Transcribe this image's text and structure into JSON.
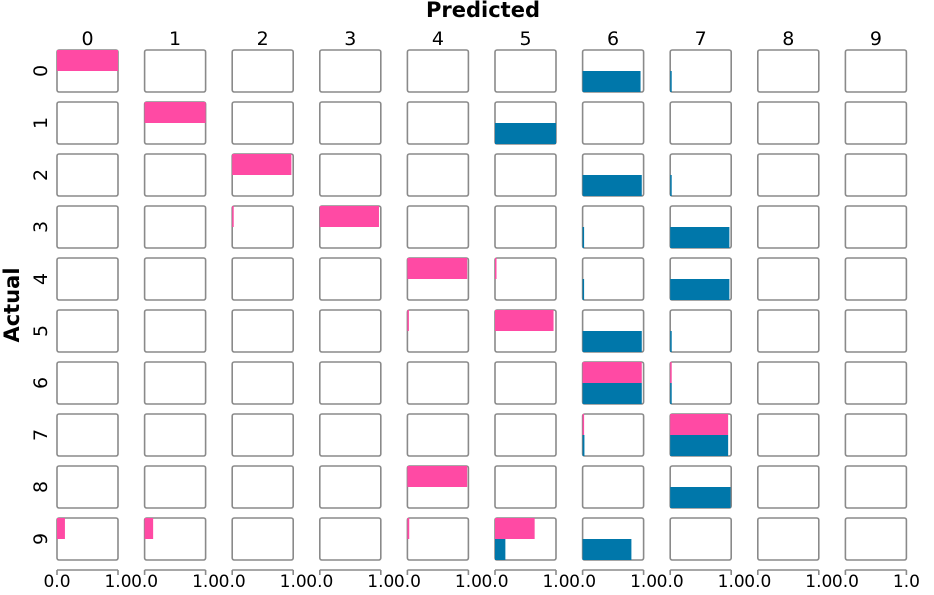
{
  "chart_data": {
    "type": "bar",
    "chart_kind": "confusion-matrix grid of horizontal bar panels",
    "xlabel": "Predicted",
    "ylabel": "Actual",
    "predicted_labels": [
      "0",
      "1",
      "2",
      "3",
      "4",
      "5",
      "6",
      "7",
      "8",
      "9"
    ],
    "actual_labels": [
      "0",
      "1",
      "2",
      "3",
      "4",
      "5",
      "6",
      "7",
      "8",
      "9"
    ],
    "x_tick_labels": [
      "0.0",
      "1.0"
    ],
    "xlim": [
      0,
      1
    ],
    "series": [
      {
        "key": "pink",
        "color": "#ff4aa4"
      },
      {
        "key": "blue",
        "color": "#0077aa"
      }
    ],
    "cells": [
      {
        "actual": 0,
        "predicted": 0,
        "pink": 1.0,
        "blue": 0.0
      },
      {
        "actual": 0,
        "predicted": 6,
        "pink": 0.0,
        "blue": 0.95
      },
      {
        "actual": 0,
        "predicted": 7,
        "pink": 0.0,
        "blue": 0.02
      },
      {
        "actual": 1,
        "predicted": 1,
        "pink": 1.0,
        "blue": 0.0
      },
      {
        "actual": 1,
        "predicted": 5,
        "pink": 0.0,
        "blue": 1.0
      },
      {
        "actual": 2,
        "predicted": 2,
        "pink": 0.97,
        "blue": 0.0
      },
      {
        "actual": 2,
        "predicted": 6,
        "pink": 0.0,
        "blue": 0.97
      },
      {
        "actual": 2,
        "predicted": 7,
        "pink": 0.0,
        "blue": 0.02
      },
      {
        "actual": 3,
        "predicted": 2,
        "pink": 0.02,
        "blue": 0.0
      },
      {
        "actual": 3,
        "predicted": 3,
        "pink": 0.97,
        "blue": 0.0
      },
      {
        "actual": 3,
        "predicted": 6,
        "pink": 0.0,
        "blue": 0.02
      },
      {
        "actual": 3,
        "predicted": 7,
        "pink": 0.0,
        "blue": 0.97
      },
      {
        "actual": 4,
        "predicted": 4,
        "pink": 0.98,
        "blue": 0.0
      },
      {
        "actual": 4,
        "predicted": 5,
        "pink": 0.02,
        "blue": 0.0
      },
      {
        "actual": 4,
        "predicted": 6,
        "pink": 0.0,
        "blue": 0.02
      },
      {
        "actual": 4,
        "predicted": 7,
        "pink": 0.0,
        "blue": 0.97
      },
      {
        "actual": 5,
        "predicted": 4,
        "pink": 0.02,
        "blue": 0.0
      },
      {
        "actual": 5,
        "predicted": 5,
        "pink": 0.96,
        "blue": 0.0
      },
      {
        "actual": 5,
        "predicted": 6,
        "pink": 0.0,
        "blue": 0.97
      },
      {
        "actual": 5,
        "predicted": 7,
        "pink": 0.0,
        "blue": 0.02
      },
      {
        "actual": 6,
        "predicted": 6,
        "pink": 0.97,
        "blue": 0.97
      },
      {
        "actual": 6,
        "predicted": 7,
        "pink": 0.02,
        "blue": 0.02
      },
      {
        "actual": 7,
        "predicted": 6,
        "pink": 0.02,
        "blue": 0.03
      },
      {
        "actual": 7,
        "predicted": 7,
        "pink": 0.95,
        "blue": 0.95
      },
      {
        "actual": 8,
        "predicted": 4,
        "pink": 0.98,
        "blue": 0.0
      },
      {
        "actual": 8,
        "predicted": 7,
        "pink": 0.0,
        "blue": 0.99
      },
      {
        "actual": 9,
        "predicted": 0,
        "pink": 0.13,
        "blue": 0.0
      },
      {
        "actual": 9,
        "predicted": 1,
        "pink": 0.14,
        "blue": 0.0
      },
      {
        "actual": 9,
        "predicted": 4,
        "pink": 0.03,
        "blue": 0.0
      },
      {
        "actual": 9,
        "predicted": 5,
        "pink": 0.65,
        "blue": 0.17
      },
      {
        "actual": 9,
        "predicted": 6,
        "pink": 0.0,
        "blue": 0.8
      }
    ],
    "grid": false,
    "legend": "none"
  }
}
